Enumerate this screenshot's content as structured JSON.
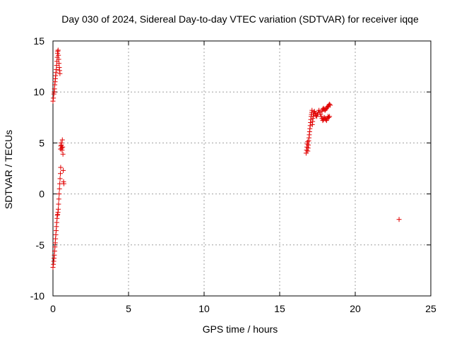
{
  "chart_data": {
    "type": "scatter",
    "title": "Day 030 of 2024, Sidereal Day-to-day VTEC variation (SDTVAR) for receiver iqqe",
    "xlabel": "GPS time / hours",
    "ylabel": "SDTVAR / TECUs",
    "xlim": [
      0,
      25
    ],
    "ylim": [
      -10,
      15
    ],
    "xticks": [
      0,
      5,
      10,
      15,
      20,
      25
    ],
    "yticks": [
      -10,
      -5,
      0,
      5,
      10,
      15
    ],
    "xtick_labels": [
      "0",
      "5",
      "10",
      "15",
      "20",
      "25"
    ],
    "ytick_labels": [
      "-10",
      "-5",
      "0",
      "5",
      "10",
      "15"
    ],
    "grid": true,
    "marker": "+",
    "color": "#e00000",
    "series": [
      {
        "name": "SDTVAR",
        "points": [
          [
            0.0,
            9.1
          ],
          [
            0.03,
            9.4
          ],
          [
            0.06,
            9.8
          ],
          [
            0.08,
            10.0
          ],
          [
            0.1,
            10.3
          ],
          [
            0.12,
            10.7
          ],
          [
            0.14,
            11.0
          ],
          [
            0.16,
            11.3
          ],
          [
            0.18,
            11.6
          ],
          [
            0.2,
            11.9
          ],
          [
            0.22,
            12.2
          ],
          [
            0.24,
            12.6
          ],
          [
            0.26,
            13.0
          ],
          [
            0.28,
            13.4
          ],
          [
            0.3,
            13.8
          ],
          [
            0.32,
            14.0
          ],
          [
            0.34,
            14.1
          ],
          [
            0.36,
            13.6
          ],
          [
            0.38,
            13.2
          ],
          [
            0.4,
            12.8
          ],
          [
            0.42,
            12.4
          ],
          [
            0.44,
            12.1
          ],
          [
            0.46,
            11.8
          ],
          [
            0.5,
            4.4
          ],
          [
            0.52,
            4.7
          ],
          [
            0.54,
            5.0
          ],
          [
            0.56,
            4.8
          ],
          [
            0.58,
            4.5
          ],
          [
            0.6,
            4.3
          ],
          [
            0.62,
            5.3
          ],
          [
            0.64,
            4.6
          ],
          [
            0.66,
            3.9
          ],
          [
            0.68,
            2.3
          ],
          [
            0.7,
            1.2
          ],
          [
            0.72,
            1.0
          ],
          [
            0.0,
            -7.2
          ],
          [
            0.03,
            -6.9
          ],
          [
            0.05,
            -6.6
          ],
          [
            0.07,
            -6.3
          ],
          [
            0.09,
            -6.0
          ],
          [
            0.11,
            -5.6
          ],
          [
            0.13,
            -5.2
          ],
          [
            0.15,
            -4.8
          ],
          [
            0.17,
            -4.4
          ],
          [
            0.19,
            -4.0
          ],
          [
            0.21,
            -3.6
          ],
          [
            0.23,
            -3.2
          ],
          [
            0.25,
            -2.8
          ],
          [
            0.27,
            -2.4
          ],
          [
            0.29,
            -2.1
          ],
          [
            0.31,
            -2.0
          ],
          [
            0.33,
            -1.8
          ],
          [
            0.35,
            -1.5
          ],
          [
            0.37,
            -1.0
          ],
          [
            0.39,
            -0.5
          ],
          [
            0.41,
            0.0
          ],
          [
            0.43,
            0.5
          ],
          [
            0.45,
            1.0
          ],
          [
            0.47,
            1.5
          ],
          [
            0.49,
            2.0
          ],
          [
            0.51,
            2.6
          ],
          [
            16.75,
            4.0
          ],
          [
            16.78,
            4.3
          ],
          [
            16.8,
            4.6
          ],
          [
            16.82,
            4.9
          ],
          [
            16.84,
            5.1
          ],
          [
            16.86,
            4.2
          ],
          [
            16.88,
            4.5
          ],
          [
            16.9,
            4.8
          ],
          [
            16.92,
            5.2
          ],
          [
            16.94,
            5.5
          ],
          [
            16.96,
            5.8
          ],
          [
            16.98,
            6.1
          ],
          [
            17.0,
            6.4
          ],
          [
            17.02,
            6.7
          ],
          [
            17.04,
            7.0
          ],
          [
            17.06,
            7.3
          ],
          [
            17.08,
            7.6
          ],
          [
            17.1,
            7.8
          ],
          [
            17.12,
            8.0
          ],
          [
            17.14,
            8.2
          ],
          [
            17.16,
            6.8
          ],
          [
            17.18,
            7.1
          ],
          [
            17.2,
            7.4
          ],
          [
            17.22,
            7.6
          ],
          [
            17.24,
            7.8
          ],
          [
            17.26,
            8.0
          ],
          [
            17.3,
            8.1
          ],
          [
            17.35,
            7.9
          ],
          [
            17.4,
            7.7
          ],
          [
            17.45,
            7.6
          ],
          [
            17.5,
            7.8
          ],
          [
            17.55,
            8.0
          ],
          [
            17.6,
            8.2
          ],
          [
            17.65,
            8.0
          ],
          [
            17.7,
            7.8
          ],
          [
            17.75,
            7.6
          ],
          [
            17.8,
            7.4
          ],
          [
            17.85,
            7.2
          ],
          [
            17.9,
            7.3
          ],
          [
            17.95,
            7.5
          ],
          [
            18.0,
            7.4
          ],
          [
            18.05,
            7.3
          ],
          [
            18.1,
            7.2
          ],
          [
            18.15,
            7.4
          ],
          [
            18.2,
            7.6
          ],
          [
            18.25,
            7.5
          ],
          [
            18.3,
            7.6
          ],
          [
            17.8,
            8.1
          ],
          [
            17.85,
            8.3
          ],
          [
            17.9,
            8.4
          ],
          [
            17.95,
            8.3
          ],
          [
            18.0,
            8.2
          ],
          [
            18.05,
            8.3
          ],
          [
            18.1,
            8.4
          ],
          [
            18.15,
            8.5
          ],
          [
            18.2,
            8.6
          ],
          [
            18.25,
            8.7
          ],
          [
            18.3,
            8.8
          ],
          [
            18.35,
            8.7
          ],
          [
            22.9,
            -2.5
          ]
        ]
      }
    ]
  }
}
